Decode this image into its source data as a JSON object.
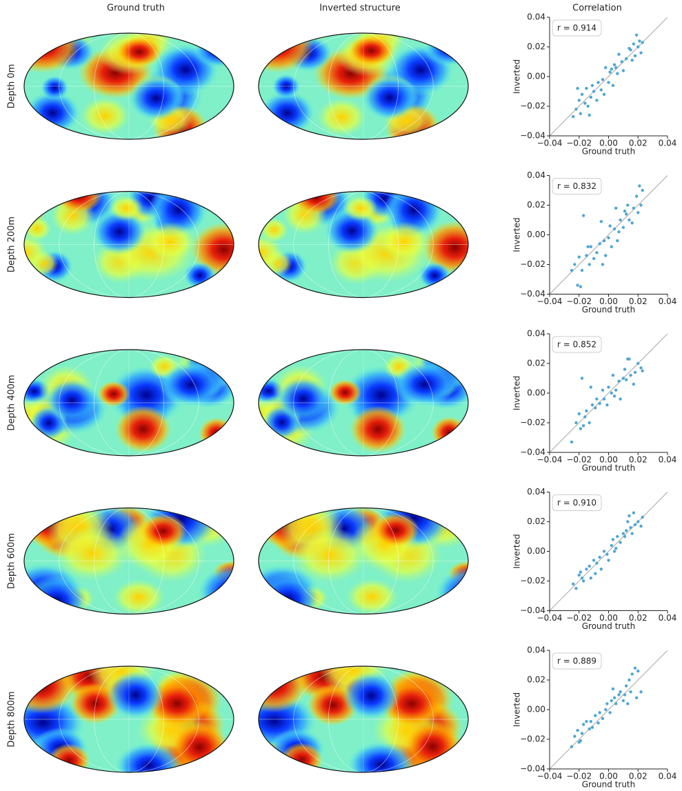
{
  "column_titles": [
    "Ground truth",
    "Inverted structure",
    "Correlation"
  ],
  "row_labels": [
    "Depth 0m",
    "Depth 200m",
    "Depth 400m",
    "Depth 600m",
    "Depth 800m"
  ],
  "chart_data": [
    {
      "type": "scatter",
      "annotation": "r = 0.914",
      "xlabel": "Ground truth",
      "ylabel": "Inverted",
      "color": "#4ea6d2",
      "x": [
        -0.024,
        -0.022,
        -0.02,
        -0.019,
        -0.018,
        -0.016,
        -0.015,
        -0.014,
        -0.012,
        -0.011,
        -0.01,
        -0.008,
        -0.007,
        -0.005,
        -0.004,
        -0.003,
        -0.002,
        0.0,
        0.001,
        0.002,
        0.003,
        0.004,
        0.006,
        0.007,
        0.009,
        0.01,
        0.012,
        0.014,
        0.015,
        0.017,
        0.018,
        0.019,
        0.02,
        0.021,
        0.022,
        0.023,
        -0.021,
        -0.013,
        0.005,
        0.016
      ],
      "values": [
        -0.027,
        -0.022,
        -0.016,
        -0.025,
        -0.012,
        -0.018,
        -0.008,
        -0.02,
        -0.014,
        -0.006,
        -0.01,
        -0.016,
        -0.004,
        -0.009,
        -0.002,
        -0.012,
        0.006,
        -0.004,
        0.003,
        0.005,
        -0.006,
        0.008,
        0.002,
        0.015,
        0.01,
        0.004,
        0.012,
        0.019,
        0.018,
        0.022,
        0.014,
        0.028,
        0.02,
        0.024,
        0.016,
        0.023,
        -0.008,
        -0.026,
        0.006,
        0.011
      ],
      "xlim": [
        -0.04,
        0.04
      ],
      "ylim": [
        -0.04,
        0.04
      ],
      "xticks": [
        {
          "value": -0.04,
          "label": "−0.04"
        },
        {
          "value": -0.02,
          "label": "−0.02"
        },
        {
          "value": 0,
          "label": "0.00"
        },
        0.02,
        0.04
      ],
      "yticks": [
        {
          "value": -0.04,
          "label": "−0.04"
        },
        {
          "value": -0.02,
          "label": "−0.02"
        },
        {
          "value": 0,
          "label": "0.00"
        },
        0.02,
        0.04
      ]
    },
    {
      "type": "scatter",
      "annotation": "r = 0.832",
      "xlabel": "Ground truth",
      "ylabel": "Inverted",
      "color": "#4ea6d2",
      "x": [
        -0.025,
        -0.023,
        -0.021,
        -0.02,
        -0.018,
        -0.017,
        -0.015,
        -0.013,
        -0.012,
        -0.01,
        -0.008,
        -0.006,
        -0.005,
        -0.003,
        -0.002,
        0.0,
        0.001,
        0.002,
        0.004,
        0.005,
        0.007,
        0.008,
        0.01,
        0.011,
        0.013,
        0.014,
        0.016,
        0.017,
        0.019,
        0.02,
        0.021,
        0.022,
        0.023,
        -0.019,
        -0.014,
        -0.004,
        0.006,
        0.012
      ],
      "values": [
        -0.024,
        -0.02,
        -0.034,
        -0.015,
        -0.024,
        0.013,
        -0.014,
        -0.02,
        -0.008,
        -0.016,
        -0.012,
        -0.006,
        0.009,
        -0.004,
        -0.014,
        -0.002,
        0.006,
        -0.008,
        0.004,
        0.018,
        0.002,
        0.01,
        0.005,
        0.016,
        0.02,
        0.01,
        0.008,
        0.018,
        0.026,
        0.015,
        0.033,
        0.02,
        0.03,
        -0.035,
        -0.008,
        -0.02,
        -0.004,
        0.014
      ],
      "xlim": [
        -0.04,
        0.04
      ],
      "ylim": [
        -0.04,
        0.04
      ],
      "xticks": [
        {
          "value": -0.04,
          "label": "−0.04"
        },
        {
          "value": -0.02,
          "label": "−0.02"
        },
        {
          "value": 0,
          "label": "0.00"
        },
        0.02,
        0.04
      ],
      "yticks": [
        {
          "value": -0.04,
          "label": "−0.04"
        },
        {
          "value": -0.02,
          "label": "−0.02"
        },
        {
          "value": 0,
          "label": "0.00"
        },
        0.02,
        0.04
      ]
    },
    {
      "type": "scatter",
      "annotation": "r = 0.852",
      "xlabel": "Ground truth",
      "ylabel": "Inverted",
      "color": "#4ea6d2",
      "x": [
        -0.025,
        -0.022,
        -0.02,
        -0.019,
        -0.018,
        -0.016,
        -0.015,
        -0.013,
        -0.011,
        -0.009,
        -0.008,
        -0.006,
        -0.004,
        -0.003,
        -0.001,
        0.0,
        0.002,
        0.003,
        0.005,
        0.007,
        0.008,
        0.01,
        0.011,
        0.012,
        0.014,
        0.015,
        0.017,
        0.018,
        0.02,
        0.022,
        0.023,
        -0.017,
        -0.012,
        0.004,
        0.013
      ],
      "values": [
        -0.033,
        -0.02,
        -0.014,
        -0.024,
        0.01,
        -0.016,
        -0.012,
        -0.02,
        -0.008,
        -0.01,
        -0.004,
        -0.007,
        0.002,
        -0.004,
        -0.008,
        0.004,
        0.0,
        0.012,
        0.002,
        0.008,
        -0.004,
        0.01,
        0.016,
        0.009,
        0.023,
        0.012,
        0.006,
        0.014,
        0.02,
        0.017,
        0.015,
        -0.022,
        0.004,
        -0.002,
        0.023
      ],
      "xlim": [
        -0.04,
        0.04
      ],
      "ylim": [
        -0.04,
        0.04
      ],
      "xticks": [
        {
          "value": -0.04,
          "label": "−0.04"
        },
        {
          "value": -0.02,
          "label": "−0.02"
        },
        {
          "value": 0,
          "label": "0.00"
        },
        0.02,
        0.04
      ],
      "yticks": [
        {
          "value": -0.04,
          "label": "−0.04"
        },
        {
          "value": -0.02,
          "label": "−0.02"
        },
        {
          "value": 0,
          "label": "0.00"
        },
        0.02,
        0.04
      ]
    },
    {
      "type": "scatter",
      "annotation": "r = 0.910",
      "xlabel": "Ground truth",
      "ylabel": "Inverted",
      "color": "#4ea6d2",
      "x": [
        -0.024,
        -0.022,
        -0.02,
        -0.018,
        -0.017,
        -0.015,
        -0.013,
        -0.012,
        -0.01,
        -0.008,
        -0.006,
        -0.005,
        -0.003,
        -0.001,
        0.0,
        0.002,
        0.003,
        0.005,
        0.006,
        0.008,
        0.01,
        0.011,
        0.012,
        0.013,
        0.015,
        0.016,
        0.017,
        0.018,
        0.02,
        0.022,
        0.023,
        -0.019,
        -0.009,
        0.004,
        0.014
      ],
      "values": [
        -0.022,
        -0.025,
        -0.016,
        -0.018,
        -0.02,
        -0.012,
        -0.01,
        -0.018,
        -0.006,
        -0.008,
        -0.004,
        -0.012,
        0.0,
        -0.002,
        -0.006,
        0.004,
        0.008,
        0.002,
        0.01,
        0.006,
        0.012,
        0.01,
        0.014,
        0.02,
        0.016,
        0.012,
        0.026,
        0.018,
        0.02,
        0.017,
        0.023,
        -0.014,
        -0.015,
        0.0,
        0.024
      ],
      "xlim": [
        -0.04,
        0.04
      ],
      "ylim": [
        -0.04,
        0.04
      ],
      "xticks": [
        {
          "value": -0.04,
          "label": "−0.04"
        },
        {
          "value": -0.02,
          "label": "−0.02"
        },
        {
          "value": 0,
          "label": "0.00"
        },
        0.02,
        0.04
      ],
      "yticks": [
        {
          "value": -0.04,
          "label": "−0.04"
        },
        {
          "value": -0.02,
          "label": "−0.02"
        },
        {
          "value": 0,
          "label": "0.00"
        },
        0.02,
        0.04
      ]
    },
    {
      "type": "scatter",
      "annotation": "r = 0.889",
      "xlabel": "Ground truth",
      "ylabel": "Inverted",
      "color": "#4ea6d2",
      "x": [
        -0.025,
        -0.023,
        -0.021,
        -0.02,
        -0.018,
        -0.017,
        -0.015,
        -0.013,
        -0.011,
        -0.009,
        -0.007,
        -0.006,
        -0.004,
        -0.002,
        -0.001,
        0.001,
        0.002,
        0.004,
        0.005,
        0.007,
        0.008,
        0.01,
        0.011,
        0.012,
        0.014,
        0.015,
        0.016,
        0.018,
        0.019,
        0.02,
        0.022,
        -0.019,
        -0.012,
        0.003,
        0.013
      ],
      "values": [
        -0.025,
        -0.018,
        -0.014,
        -0.022,
        -0.016,
        -0.01,
        -0.008,
        -0.013,
        -0.012,
        -0.004,
        -0.009,
        -0.002,
        -0.006,
        0.0,
        0.004,
        -0.002,
        0.006,
        0.008,
        0.004,
        0.01,
        0.012,
        0.006,
        0.01,
        0.016,
        0.02,
        0.012,
        0.024,
        0.028,
        0.008,
        0.026,
        0.012,
        -0.021,
        -0.008,
        0.014,
        0.004
      ],
      "xlim": [
        -0.04,
        0.04
      ],
      "ylim": [
        -0.04,
        0.04
      ],
      "xticks": [
        {
          "value": -0.04,
          "label": "−0.04"
        },
        {
          "value": -0.02,
          "label": "−0.02"
        },
        {
          "value": 0,
          "label": "0.00"
        },
        0.02,
        0.04
      ],
      "yticks": [
        {
          "value": -0.04,
          "label": "−0.04"
        },
        {
          "value": -0.02,
          "label": "−0.02"
        },
        {
          "value": 0,
          "label": "0.00"
        },
        0.02,
        0.04
      ]
    }
  ]
}
